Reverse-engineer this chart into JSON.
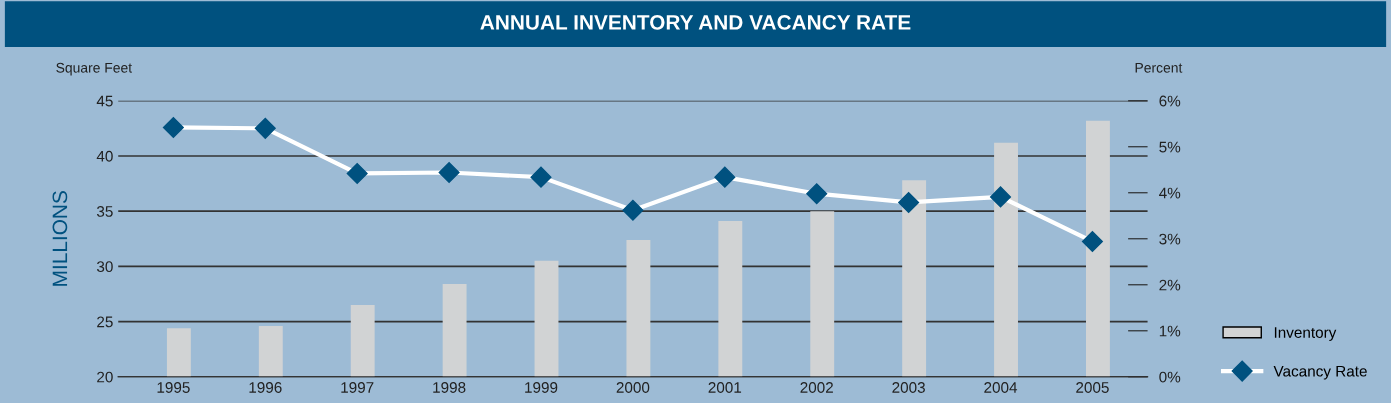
{
  "chart_data": {
    "type": "bar",
    "title": "ANNUAL INVENTORY AND VACANCY RATE",
    "ylabel": "MILLIONS",
    "annotations": [
      "Square Feet",
      "Percent"
    ],
    "categories": [
      "1995",
      "1996",
      "1997",
      "1998",
      "1999",
      "2000",
      "2001",
      "2002",
      "2003",
      "2004",
      "2005"
    ],
    "series": [
      {
        "name": "Inventory",
        "color": "#d1d3d4",
        "values": [
          24.4,
          24.6,
          26.5,
          28.4,
          30.5,
          32.4,
          34.1,
          35.0,
          37.8,
          41.2,
          43.2
        ]
      },
      {
        "name": "Vacancy Rate",
        "type": "line",
        "axis": "y2",
        "color": "#ffffff",
        "marker": "diamond",
        "values": [
          5.42,
          5.4,
          4.42,
          4.44,
          4.34,
          3.62,
          4.34,
          3.98,
          3.79,
          3.91,
          2.94
        ]
      }
    ],
    "ylim": [
      20,
      45
    ],
    "yticks": [
      20,
      25,
      30,
      35,
      40,
      45
    ],
    "y2lim": [
      0,
      6
    ],
    "y2ticks": [
      {
        "value": 0,
        "label": "0%"
      },
      {
        "value": 1,
        "label": "1%"
      },
      {
        "value": 2,
        "label": "2%"
      },
      {
        "value": 3,
        "label": "3%"
      },
      {
        "value": 4,
        "label": "4%"
      },
      {
        "value": 5,
        "label": "5%"
      },
      {
        "value": 6,
        "label": "6%"
      }
    ],
    "grid": "y",
    "legend": "bottom right"
  }
}
